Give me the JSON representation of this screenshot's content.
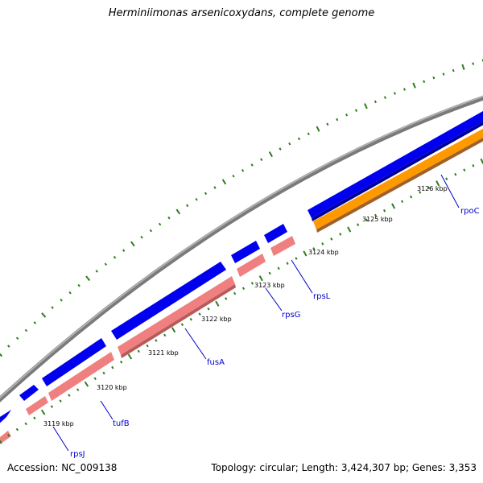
{
  "title": "Herminiimonas arsenicoxydans, complete genome",
  "accession": "Accession: NC_009138",
  "info": "Topology: circular; Length: 3,424,307 bp; Genes: 3,353",
  "tick_labels": [
    "3119 kbp",
    "3120 kbp",
    "3121 kbp",
    "3122 kbp",
    "3123 kbp",
    "3124 kbp",
    "3125 kbp",
    "3126 kbp"
  ],
  "genes": [
    {
      "name": "rpsJ",
      "color": "#0000ee",
      "rna_color": "#f08080"
    },
    {
      "name": "tufB",
      "color": "#0000ee",
      "rna_color": "#f08080"
    },
    {
      "name": "fusA",
      "color": "#0000ee",
      "rna_color": "#f08080"
    },
    {
      "name": "rpsG",
      "color": "#0000ee",
      "rna_color": "#f08080"
    },
    {
      "name": "rpsL",
      "color": "#0000ee",
      "rna_color": "#f08080"
    },
    {
      "name": "rpoC",
      "color": "#0000ee",
      "rna_color": "#ff9900"
    }
  ],
  "colors": {
    "backbone": "#888888",
    "ticks": "#2e7d1e",
    "label_line": "#0000cc",
    "cds": "#0000ee",
    "rna": "#f08080",
    "rpoC_feature": "#ff9900"
  }
}
